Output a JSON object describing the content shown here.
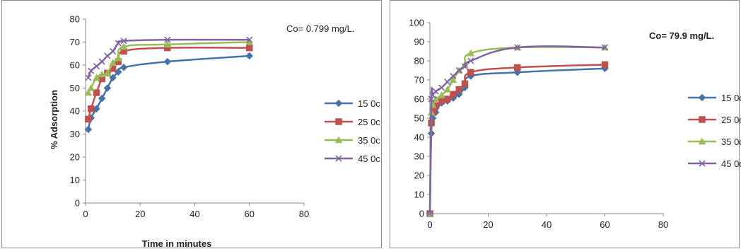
{
  "colors": {
    "15 0c": "#4572A7",
    "25 0c": "#C0504D",
    "35 0c": "#9BBB59",
    "45 0c": "#8064A2",
    "axis": "#888888"
  },
  "markers": {
    "15 0c": "diamond",
    "25 0c": "square",
    "35 0c": "triangle",
    "45 0c": "x"
  },
  "chart_data": [
    {
      "type": "line",
      "annotation": "Co= 0.799 mg/L.",
      "xlabel": "Time in minutes",
      "ylabel": "% Adsorption",
      "xlim": [
        0,
        80
      ],
      "ylim": [
        0,
        80
      ],
      "xticks": [
        0,
        20,
        40,
        60,
        80
      ],
      "yticks": [
        0,
        10,
        20,
        30,
        40,
        50,
        60,
        70,
        80
      ],
      "legend_position": "right",
      "series": [
        {
          "name": "15 0c",
          "x": [
            1,
            2,
            4,
            6,
            8,
            10,
            12,
            14,
            30,
            60
          ],
          "y": [
            32,
            37,
            41,
            45.5,
            50,
            54.5,
            57,
            59,
            61.5,
            64
          ]
        },
        {
          "name": "25 0c",
          "x": [
            1,
            2,
            4,
            6,
            8,
            10,
            12,
            14,
            30,
            60
          ],
          "y": [
            36.5,
            41,
            48,
            54,
            56.5,
            58.5,
            61.5,
            66,
            67.5,
            67.5
          ]
        },
        {
          "name": "35 0c",
          "x": [
            1,
            2,
            4,
            6,
            8,
            10,
            12,
            14,
            30,
            60
          ],
          "y": [
            48,
            50,
            54.5,
            56,
            56.5,
            61,
            63,
            68,
            69,
            70
          ]
        },
        {
          "name": "45 0c",
          "x": [
            1,
            2,
            4,
            6,
            8,
            10,
            12,
            14,
            30,
            60
          ],
          "y": [
            54.5,
            57.5,
            59.5,
            61.5,
            64,
            66,
            69.5,
            70.5,
            71,
            71
          ]
        }
      ]
    },
    {
      "type": "line",
      "annotation": "Co= 79.9 mg/L.",
      "xlabel": "",
      "ylabel": "",
      "xlim": [
        0,
        80
      ],
      "ylim": [
        0,
        100
      ],
      "xticks": [
        0,
        20,
        40,
        60,
        80
      ],
      "yticks": [
        0,
        10,
        20,
        30,
        40,
        50,
        60,
        70,
        80,
        90,
        100
      ],
      "legend_position": "right",
      "series": [
        {
          "name": "15 0c",
          "x": [
            0,
            0.5,
            1,
            2,
            4,
            6,
            8,
            10,
            12,
            14,
            30,
            60
          ],
          "y": [
            0,
            42,
            50,
            53,
            58,
            59,
            60.5,
            62.5,
            66,
            72,
            74,
            76
          ]
        },
        {
          "name": "25 0c",
          "x": [
            0,
            0.5,
            1,
            2,
            4,
            6,
            8,
            10,
            12,
            14,
            30,
            60
          ],
          "y": [
            0,
            47.5,
            53,
            56.5,
            59,
            60,
            62.5,
            65,
            68,
            74,
            76.5,
            78
          ]
        },
        {
          "name": "35 0c",
          "x": [
            0,
            0.5,
            1,
            2,
            4,
            6,
            8,
            10,
            12,
            14,
            30,
            60
          ],
          "y": [
            0,
            53,
            57,
            60,
            62,
            65,
            70,
            75,
            78,
            84,
            87,
            87
          ]
        },
        {
          "name": "45 0c",
          "x": [
            0,
            0.5,
            1,
            2,
            4,
            6,
            8,
            10,
            12,
            14,
            30,
            60
          ],
          "y": [
            0,
            60,
            62,
            64,
            66,
            69,
            72,
            75,
            77,
            80,
            87,
            87
          ]
        }
      ]
    }
  ]
}
